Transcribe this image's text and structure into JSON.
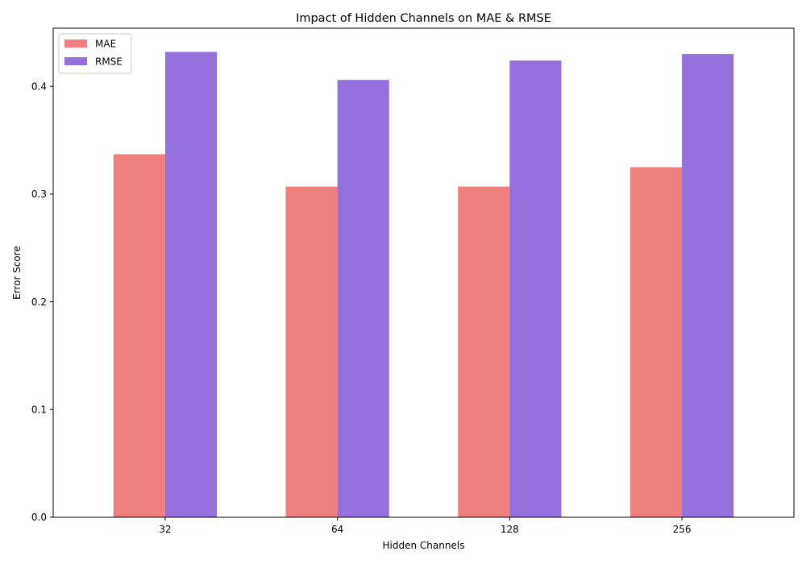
{
  "chart_data": {
    "type": "bar",
    "title": "Impact of Hidden Channels on MAE & RMSE",
    "xlabel": "Hidden Channels",
    "ylabel": "Error Score",
    "categories": [
      "32",
      "64",
      "128",
      "256"
    ],
    "series": [
      {
        "name": "MAE",
        "color": "#f08080",
        "values": [
          0.337,
          0.307,
          0.307,
          0.325
        ]
      },
      {
        "name": "RMSE",
        "color": "#9370db",
        "values": [
          0.432,
          0.406,
          0.424,
          0.43
        ]
      }
    ],
    "ylim": [
      0,
      0.454
    ],
    "yticks": [
      "0.0",
      "0.1",
      "0.2",
      "0.3",
      "0.4"
    ],
    "grid": false,
    "legend_position": "top-left"
  }
}
